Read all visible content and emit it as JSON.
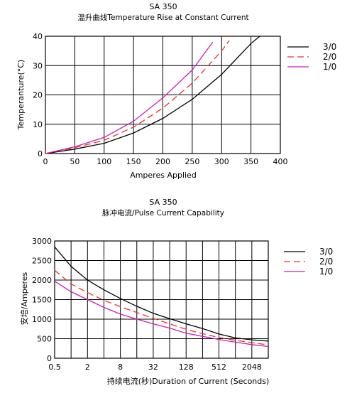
{
  "colors": {
    "series_3_0": "#000000",
    "series_2_0": "#e8312a",
    "series_1_0": "#cc1fb5",
    "grid": "#000000"
  },
  "chart_data": [
    {
      "type": "line",
      "title": "SA 350",
      "subtitle": "温升曲线Temperature Rise at Constant Current",
      "xlabel": "Amperes Applied",
      "ylabel": "Temperanture(°C)",
      "xlim": [
        0,
        400
      ],
      "ylim": [
        0,
        40
      ],
      "x_ticks": [
        0,
        50,
        100,
        150,
        200,
        250,
        300,
        350,
        400
      ],
      "y_ticks": [
        0,
        10,
        20,
        30,
        40
      ],
      "grid": true,
      "legend": "right",
      "series": [
        {
          "name": "3/0",
          "color": "#000000",
          "dash": "solid",
          "x": [
            0,
            50,
            100,
            150,
            200,
            250,
            300,
            350,
            365
          ],
          "y": [
            0,
            1.5,
            3.5,
            7,
            12,
            18.5,
            27,
            37.5,
            40
          ]
        },
        {
          "name": "2/0",
          "color": "#e8312a",
          "dash": "dashed",
          "x": [
            0,
            50,
            100,
            150,
            200,
            250,
            300,
            313
          ],
          "y": [
            0,
            2,
            4.5,
            9,
            15.5,
            24,
            35,
            38.5
          ]
        },
        {
          "name": "1/0",
          "color": "#cc1fb5",
          "dash": "solid",
          "x": [
            0,
            50,
            100,
            150,
            200,
            250,
            285
          ],
          "y": [
            0,
            2.3,
            5.5,
            11,
            19,
            28.5,
            38
          ]
        }
      ]
    },
    {
      "type": "line",
      "title": "SA 350",
      "subtitle": "脉冲电流/Pulse Current Capability",
      "xlabel": "持续电流(秒)Duration of Current (Seconds)",
      "ylabel": "安培/Amperes",
      "x_scale": "log2",
      "xlim": [
        0.5,
        4096
      ],
      "ylim": [
        0,
        3000
      ],
      "x_ticks": [
        0.5,
        2,
        8,
        32,
        128,
        512,
        2048
      ],
      "x_tick_labels": [
        "0.5",
        "2",
        "8",
        "32",
        "128",
        "512",
        "2048"
      ],
      "y_ticks": [
        0,
        500,
        1000,
        1500,
        2000,
        2500,
        3000
      ],
      "grid": true,
      "legend": "right",
      "series": [
        {
          "name": "3/0",
          "color": "#000000",
          "dash": "solid",
          "x": [
            0.5,
            1,
            2,
            4,
            8,
            16,
            32,
            64,
            128,
            256,
            512,
            1024,
            2048,
            4096
          ],
          "y": [
            2850,
            2350,
            2000,
            1750,
            1530,
            1330,
            1150,
            1010,
            880,
            760,
            620,
            520,
            470,
            440
          ]
        },
        {
          "name": "2/0",
          "color": "#e8312a",
          "dash": "dashed",
          "x": [
            0.5,
            1,
            2,
            4,
            8,
            16,
            32,
            64,
            128,
            256,
            512,
            1024,
            2048,
            4096
          ],
          "y": [
            2250,
            1900,
            1680,
            1480,
            1320,
            1170,
            1020,
            880,
            740,
            630,
            530,
            460,
            400,
            340
          ]
        },
        {
          "name": "1/0",
          "color": "#cc1fb5",
          "dash": "solid",
          "x": [
            0.5,
            1,
            2,
            4,
            8,
            16,
            32,
            64,
            128,
            256,
            512,
            1024,
            2048,
            4096
          ],
          "y": [
            1970,
            1700,
            1500,
            1300,
            1130,
            1000,
            880,
            770,
            640,
            560,
            480,
            410,
            350,
            300
          ]
        }
      ]
    }
  ]
}
